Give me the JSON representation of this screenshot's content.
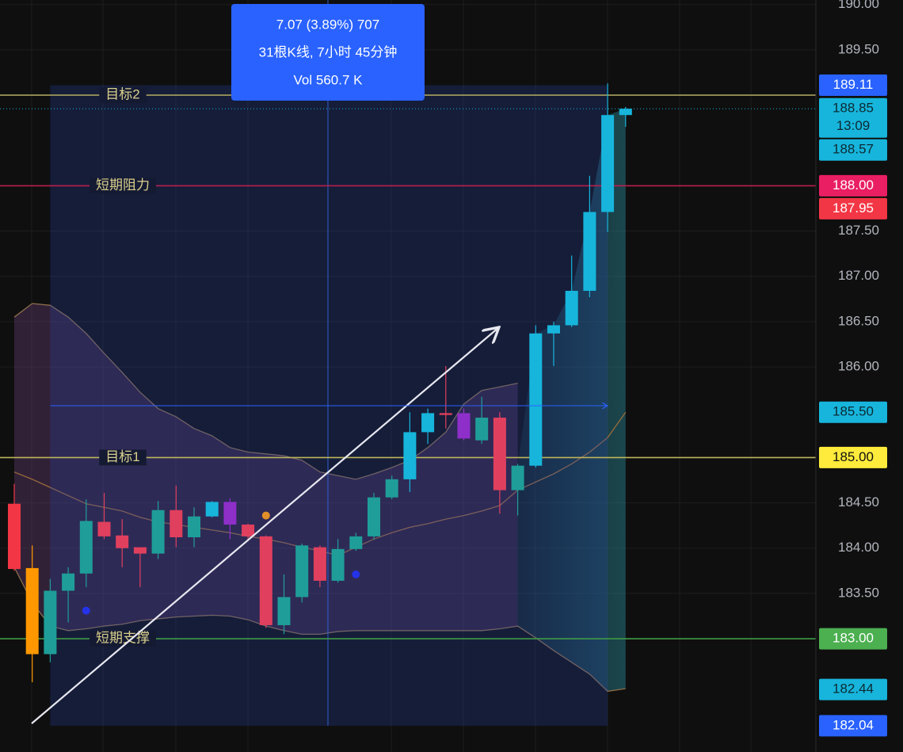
{
  "chart_data": {
    "type": "candlestick",
    "categories": [
      null,
      null,
      null,
      null,
      null,
      null,
      null,
      null,
      null,
      null,
      null,
      null,
      null,
      null,
      null,
      null,
      null,
      null,
      null,
      null,
      null,
      null,
      null,
      null,
      null,
      null,
      null,
      null,
      null,
      null,
      null,
      null,
      null,
      null,
      null
    ],
    "open": [
      184.49,
      183.78,
      182.83,
      183.53,
      183.72,
      184.29,
      184.14,
      184.01,
      183.94,
      184.42,
      184.12,
      184.35,
      184.51,
      184.26,
      184.13,
      183.15,
      183.46,
      184.01,
      183.64,
      183.99,
      184.13,
      184.56,
      184.76,
      185.28,
      185.49,
      185.49,
      185.19,
      185.44,
      184.64,
      184.91,
      186.37,
      186.46,
      186.84,
      187.71,
      188.78
    ],
    "high": [
      184.71,
      184.03,
      183.66,
      183.79,
      184.54,
      184.61,
      184.32,
      184.01,
      184.52,
      184.69,
      184.45,
      184.52,
      184.55,
      184.27,
      184.14,
      183.71,
      184.05,
      184.03,
      184.1,
      184.17,
      184.61,
      184.8,
      185.5,
      185.54,
      186.01,
      185.54,
      185.67,
      185.5,
      184.93,
      186.46,
      186.5,
      187.23,
      188.11,
      189.13,
      188.87
    ],
    "low": [
      183.75,
      182.52,
      182.74,
      183.18,
      183.57,
      184.1,
      183.79,
      183.57,
      183.88,
      184.01,
      184.01,
      184.34,
      184.1,
      184.1,
      183.12,
      183.05,
      183.4,
      183.57,
      183.62,
      183.97,
      184.1,
      184.54,
      184.62,
      185.15,
      185.32,
      185.19,
      185.15,
      184.38,
      184.36,
      184.89,
      186.01,
      186.44,
      186.77,
      187.49,
      188.65
    ],
    "close": [
      183.77,
      182.83,
      183.53,
      183.72,
      184.3,
      184.13,
      184.0,
      183.94,
      184.42,
      184.12,
      184.35,
      184.51,
      184.26,
      184.13,
      183.15,
      183.46,
      184.03,
      183.64,
      183.99,
      184.13,
      184.56,
      184.76,
      185.28,
      185.49,
      185.47,
      185.21,
      185.44,
      184.64,
      184.91,
      186.37,
      186.46,
      186.84,
      187.71,
      188.78,
      188.85
    ],
    "colors": [
      "#f23645",
      "#ff9800",
      "#1f9e99",
      "#1f9e99",
      "#1f9e99",
      "#e0405e",
      "#e0405e",
      "#e0405e",
      "#1f9e99",
      "#e0405e",
      "#1f9e99",
      "#17b5dc",
      "#8e2fc9",
      "#e0405e",
      "#e0405e",
      "#1f9e99",
      "#1f9e99",
      "#e0405e",
      "#1f9e99",
      "#1f9e99",
      "#1f9e99",
      "#1f9e99",
      "#17b5dc",
      "#17b5dc",
      "#e0405e",
      "#8e2fc9",
      "#1f9e99",
      "#e0405e",
      "#1f9e99",
      "#17b5dc",
      "#17b5dc",
      "#17b5dc",
      "#17b5dc",
      "#17b5dc",
      "#17b5dc"
    ],
    "bands": [
      {
        "color": "#8d6e4a",
        "values": [
          186.55,
          186.7,
          186.68,
          186.55,
          186.37,
          186.15,
          185.94,
          185.72,
          185.54,
          185.45,
          185.32,
          185.24,
          185.11,
          185.06,
          185.04,
          185.02,
          184.97,
          184.84,
          184.8,
          184.76,
          184.82,
          184.89,
          184.97,
          185.11,
          185.28,
          185.59,
          185.74,
          185.78,
          185.82,
          null,
          null,
          null,
          null,
          null,
          null
        ]
      },
      {
        "color": "#9a6a3c",
        "values": [
          184.84,
          184.76,
          184.67,
          184.58,
          184.49,
          184.45,
          184.41,
          184.34,
          184.29,
          184.26,
          184.23,
          184.2,
          184.17,
          184.13,
          184.1,
          184.06,
          184.01,
          183.97,
          183.92,
          184.01,
          184.1,
          184.17,
          184.23,
          184.27,
          184.32,
          184.36,
          184.41,
          184.47,
          184.64,
          184.73,
          184.82,
          184.93,
          185.06,
          185.22,
          185.5
        ]
      },
      {
        "color": "#8d6e4a",
        "values": [
          183.79,
          183.4,
          183.14,
          183.09,
          183.11,
          183.14,
          183.16,
          183.2,
          183.22,
          183.24,
          183.25,
          183.26,
          183.25,
          183.21,
          183.14,
          183.09,
          183.05,
          183.05,
          183.08,
          183.09,
          183.09,
          183.09,
          183.09,
          183.09,
          183.09,
          183.09,
          183.09,
          183.11,
          183.14,
          183.01,
          182.87,
          182.74,
          182.61,
          182.42,
          182.45
        ]
      }
    ],
    "dots": [
      {
        "index": 4,
        "value": 183.31,
        "color": "#2432e8"
      },
      {
        "index": 14,
        "value": 184.36,
        "color": "#e0902a"
      },
      {
        "index": 19,
        "value": 183.71,
        "color": "#2432e8"
      }
    ],
    "levels": [
      {
        "label": "目标2",
        "value": 189.0,
        "color": "#a9a25e"
      },
      {
        "label": "短期阻力",
        "value": 188.0,
        "color": "#b8204f"
      },
      {
        "label": "目标1",
        "value": 185.0,
        "color": "#bdb55c"
      },
      {
        "label": "短期支撑",
        "value": 183.0,
        "color": "#3f9a47"
      }
    ],
    "current_price": 188.85,
    "measure": {
      "from": 182.04,
      "to": 189.11,
      "lines": [
        "7.07 (3.89%) 707",
        "31根K线, 7小时 45分钟",
        "Vol 560.7 K"
      ]
    },
    "price_tags": [
      {
        "value": 188.85,
        "label": "188.85",
        "sub": "13:09",
        "color": "#17b5dc"
      },
      {
        "value": 188.57,
        "label": "188.57",
        "color": "#17b5dc"
      },
      {
        "value": 188.0,
        "label": "188.00",
        "color": "#e91e63"
      },
      {
        "value": 187.95,
        "label": "187.95",
        "color": "#f23645"
      },
      {
        "value": 185.5,
        "label": "185.50",
        "color": "#17b5dc"
      },
      {
        "value": 185.0,
        "label": "185.00",
        "color": "#ffeb3b"
      },
      {
        "value": 183.0,
        "label": "183.00",
        "color": "#4caf50"
      },
      {
        "value": 182.44,
        "label": "182.44",
        "color": "#17b5dc"
      }
    ],
    "ylim": [
      181.75,
      190.05
    ],
    "yticks": [
      {
        "value": 190,
        "label": "190.00"
      },
      {
        "value": 189.5,
        "label": "189.50"
      },
      {
        "value": 187.5,
        "label": "187.50"
      },
      {
        "value": 187,
        "label": "187.00"
      },
      {
        "value": 186.5,
        "label": "186.50"
      },
      {
        "value": 186,
        "label": "186.00"
      },
      {
        "value": 184.5,
        "label": "184.50"
      },
      {
        "value": 184,
        "label": "184.00"
      },
      {
        "value": 183.5,
        "label": "183.50"
      }
    ],
    "grid": true
  }
}
